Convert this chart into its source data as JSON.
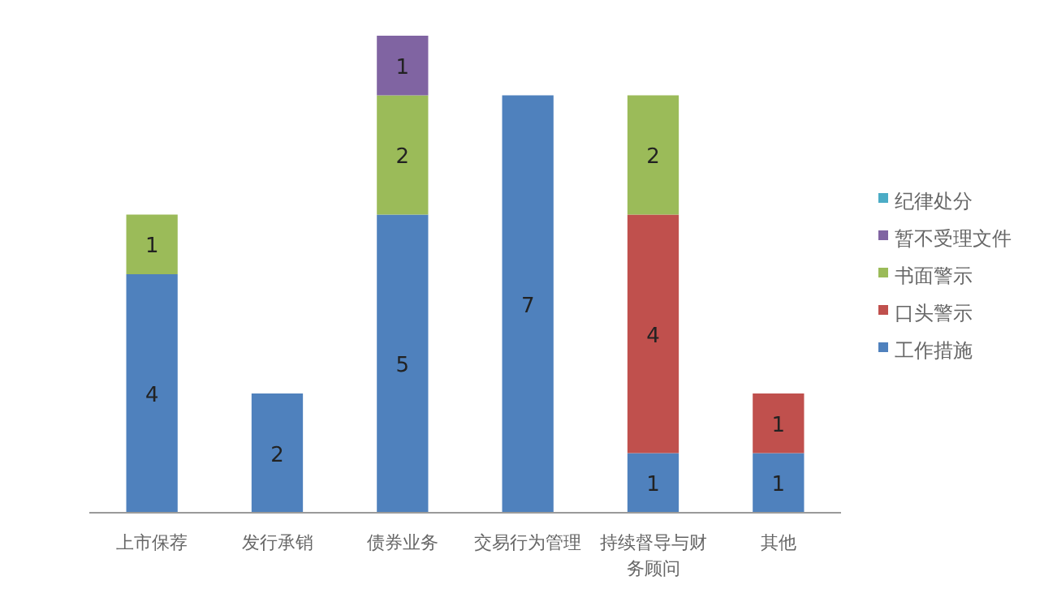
{
  "chart_data": {
    "type": "bar",
    "stacked": true,
    "data_labels": true,
    "legend": "right",
    "categories": [
      "上市保荐",
      "发行承销",
      "债券业务",
      "交易行为管理",
      "持续督导与财务顾问",
      "其他"
    ],
    "series": [
      {
        "name": "工作措施",
        "color": "#4f81bd",
        "values": [
          4,
          2,
          5,
          7,
          1,
          1
        ]
      },
      {
        "name": "口头警示",
        "color": "#c0504d",
        "values": [
          null,
          null,
          null,
          null,
          4,
          1
        ]
      },
      {
        "name": "书面警示",
        "color": "#9bbb59",
        "values": [
          1,
          null,
          2,
          null,
          2,
          null
        ]
      },
      {
        "name": "暂不受理文件",
        "color": "#8064a2",
        "values": [
          null,
          null,
          1,
          null,
          null,
          null
        ]
      },
      {
        "name": "纪律处分",
        "color": "#4bacc6",
        "values": [
          null,
          null,
          null,
          null,
          null,
          null
        ]
      }
    ]
  }
}
